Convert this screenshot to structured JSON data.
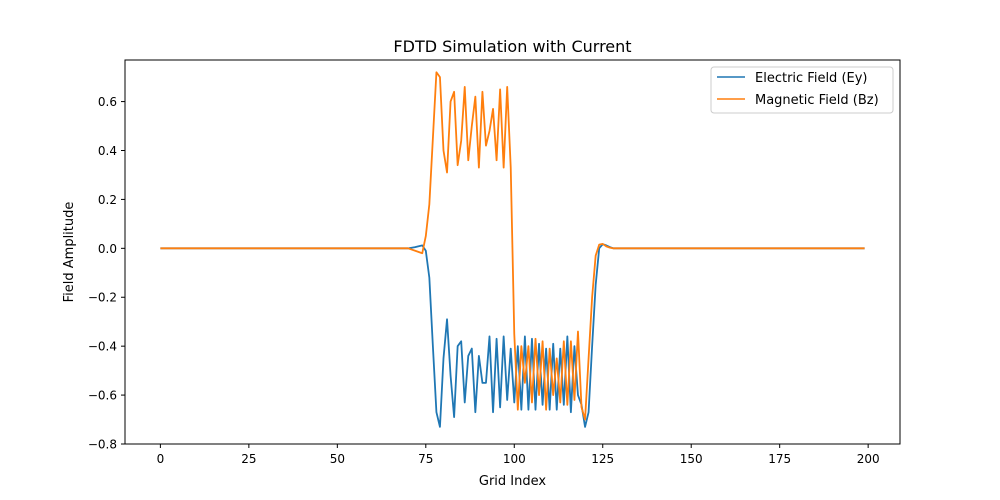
{
  "chart_data": {
    "type": "line",
    "title": "FDTD Simulation with Current",
    "xlabel": "Grid Index",
    "ylabel": "Field Amplitude",
    "xlim": [
      -10,
      209
    ],
    "ylim": [
      -0.8,
      0.77
    ],
    "xticks": [
      0,
      25,
      50,
      75,
      100,
      125,
      150,
      175,
      200
    ],
    "xtick_labels": [
      "0",
      "25",
      "50",
      "75",
      "100",
      "125",
      "150",
      "175",
      "200"
    ],
    "yticks": [
      -0.8,
      -0.6,
      -0.4,
      -0.2,
      0.0,
      0.2,
      0.4,
      0.6
    ],
    "ytick_labels": [
      "−0.8",
      "−0.6",
      "−0.4",
      "−0.2",
      "0.0",
      "0.2",
      "0.4",
      "0.6"
    ],
    "grid": false,
    "legend_position": "top-right",
    "series": [
      {
        "name": "Electric Field (Ey)",
        "color": "#1f77b4",
        "x": [
          0,
          70,
          72,
          74,
          75,
          76,
          77,
          78,
          79,
          80,
          81,
          82,
          83,
          84,
          85,
          86,
          87,
          88,
          89,
          90,
          91,
          92,
          93,
          94,
          95,
          96,
          97,
          98,
          99,
          100,
          101,
          102,
          103,
          104,
          105,
          106,
          107,
          108,
          109,
          110,
          111,
          112,
          113,
          114,
          115,
          116,
          117,
          118,
          119,
          120,
          121,
          122,
          123,
          124,
          125,
          126,
          127,
          128,
          130,
          199
        ],
        "y": [
          0,
          0.0,
          0.005,
          0.012,
          -0.01,
          -0.12,
          -0.4,
          -0.67,
          -0.73,
          -0.45,
          -0.29,
          -0.52,
          -0.69,
          -0.4,
          -0.38,
          -0.63,
          -0.44,
          -0.41,
          -0.67,
          -0.44,
          -0.55,
          -0.55,
          -0.36,
          -0.67,
          -0.37,
          -0.65,
          -0.36,
          -0.62,
          -0.41,
          -0.63,
          -0.4,
          -0.66,
          -0.36,
          -0.66,
          -0.37,
          -0.66,
          -0.39,
          -0.64,
          -0.41,
          -0.66,
          -0.39,
          -0.66,
          -0.41,
          -0.64,
          -0.36,
          -0.67,
          -0.4,
          -0.6,
          -0.64,
          -0.73,
          -0.67,
          -0.4,
          -0.15,
          0.0,
          0.017,
          0.012,
          0.005,
          0.0,
          0.0,
          0.0
        ]
      },
      {
        "name": "Magnetic Field (Bz)",
        "color": "#ff7f0e",
        "x": [
          0,
          70,
          72,
          74,
          75,
          76,
          77,
          78,
          79,
          80,
          81,
          82,
          83,
          84,
          85,
          86,
          87,
          88,
          89,
          90,
          91,
          92,
          93,
          94,
          95,
          96,
          97,
          98,
          99,
          100,
          101,
          102,
          103,
          104,
          105,
          106,
          107,
          108,
          109,
          110,
          111,
          112,
          113,
          114,
          115,
          116,
          117,
          118,
          119,
          120,
          121,
          122,
          123,
          124,
          125,
          126,
          127,
          128,
          130,
          199
        ],
        "y": [
          0,
          0.0,
          -0.01,
          -0.02,
          0.05,
          0.18,
          0.45,
          0.72,
          0.7,
          0.4,
          0.31,
          0.6,
          0.64,
          0.34,
          0.44,
          0.66,
          0.36,
          0.5,
          0.62,
          0.33,
          0.64,
          0.42,
          0.48,
          0.57,
          0.36,
          0.65,
          0.33,
          0.66,
          0.33,
          -0.35,
          -0.66,
          -0.4,
          -0.55,
          -0.4,
          -0.63,
          -0.37,
          -0.6,
          -0.38,
          -0.66,
          -0.41,
          -0.6,
          -0.45,
          -0.63,
          -0.38,
          -0.64,
          -0.38,
          -0.62,
          -0.34,
          -0.65,
          -0.7,
          -0.45,
          -0.2,
          -0.03,
          0.015,
          0.018,
          0.008,
          0.003,
          0.0,
          0.0,
          0.0
        ]
      }
    ]
  }
}
